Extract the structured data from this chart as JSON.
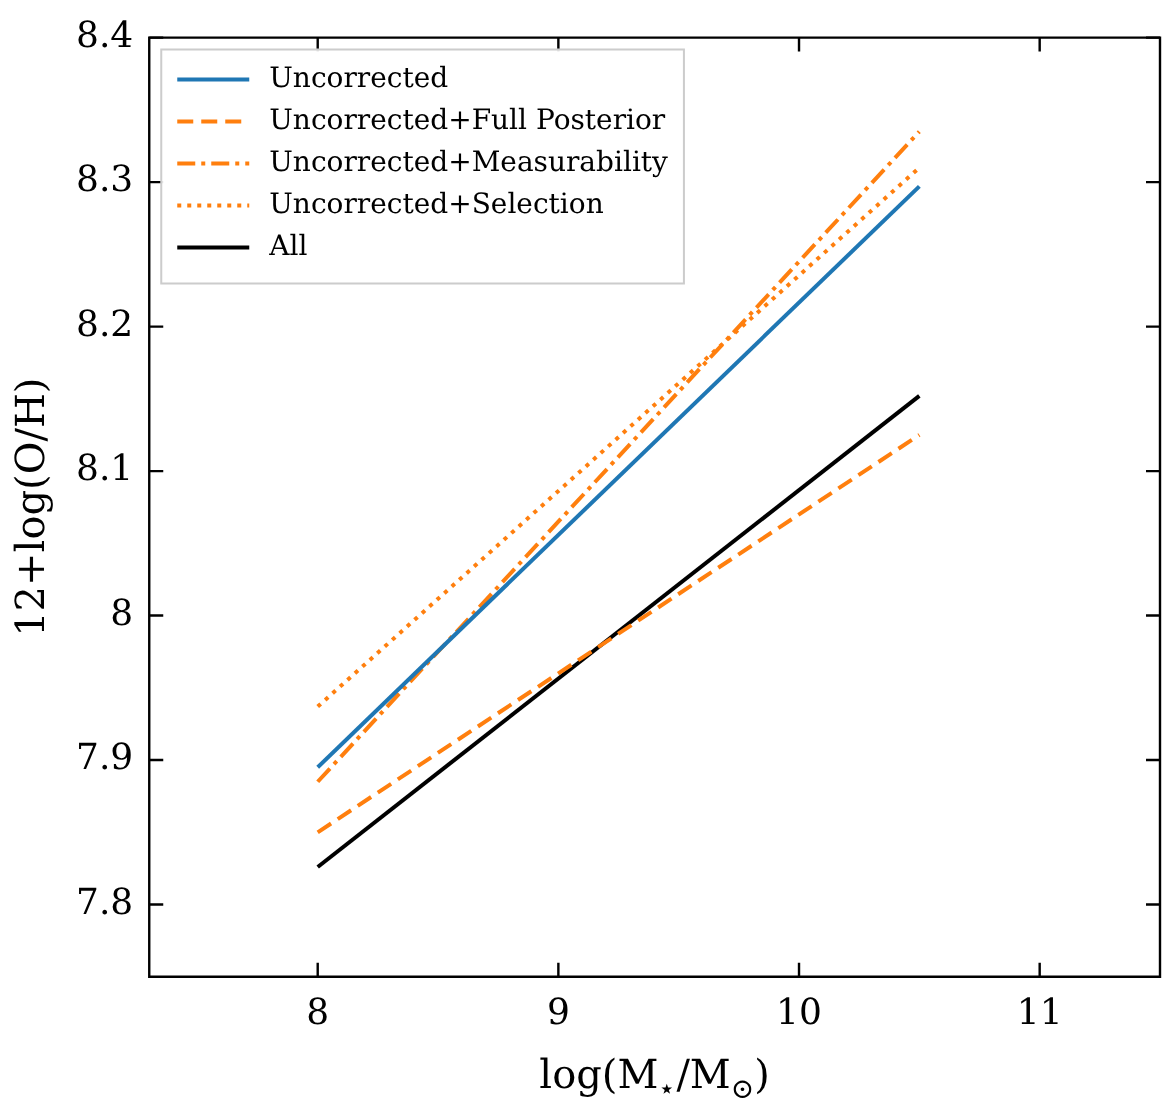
{
  "chart_data": {
    "type": "line",
    "xlabel": "log(M$_{⋆}$/M$_{⊙}$)",
    "ylabel": "12+log(O/H)",
    "xlim": [
      7.3,
      11.5
    ],
    "ylim": [
      7.75,
      8.4
    ],
    "xticks": [
      8,
      9,
      10,
      11
    ],
    "yticks": [
      7.8,
      7.9,
      8.0,
      8.1,
      8.2,
      8.3,
      8.4
    ],
    "grid": false,
    "legend": "top left",
    "marker": "none",
    "x": [
      8,
      10.5
    ],
    "series": [
      {
        "name": "Uncorrected",
        "color": "#1f77b4",
        "line_style": "solid",
        "values": [
          7.895,
          8.297
        ]
      },
      {
        "name": "Uncorrected+Full Posterior",
        "color": "#ff7f0e",
        "line_style": "dashed",
        "values": [
          7.85,
          8.125
        ]
      },
      {
        "name": "Uncorrected+Measurability",
        "color": "#ff7f0e",
        "line_style": "dashdot",
        "values": [
          7.885,
          8.335
        ]
      },
      {
        "name": "Uncorrected+Selection",
        "color": "#ff7f0e",
        "line_style": "dotted",
        "values": [
          7.937,
          8.31
        ]
      },
      {
        "name": "All",
        "color": "#000000",
        "line_style": "solid",
        "values": [
          7.826,
          8.152
        ]
      }
    ]
  }
}
